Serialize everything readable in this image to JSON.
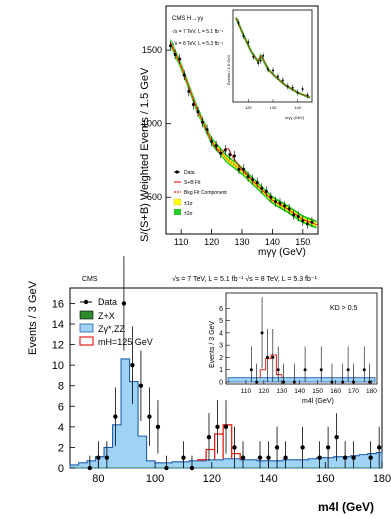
{
  "chart_data": [
    {
      "type": "line",
      "experiment": "CMS H→γγ",
      "lumi_lines": [
        "√s = 7 TeV, L = 5.1 fb⁻¹",
        "√s = 8 TeV, L = 5.3 fb⁻¹"
      ],
      "xlabel": "mγγ (GeV)",
      "ylabel": "S/(S+B) Weighted Events / 1.5 GeV",
      "xlim": [
        105,
        155
      ],
      "ylim": [
        250,
        1800
      ],
      "xticks": [
        110,
        120,
        130,
        140,
        150
      ],
      "yticks": [
        500,
        1000,
        1500
      ],
      "legend": [
        "Data",
        "S+B Fit",
        "Bkg Fit Component",
        "±1σ",
        "±2σ"
      ],
      "colors": {
        "data": "#000000",
        "sb_fit": "#e2231a",
        "bkg_fit": "#333333",
        "band1": "#ffff00",
        "band2": "#22cc22"
      },
      "series": [
        {
          "name": "Data",
          "x": [
            106.5,
            108,
            109.5,
            111,
            112.5,
            114,
            115.5,
            117,
            118.5,
            120,
            121.5,
            123,
            124.5,
            126,
            127.5,
            129,
            130.5,
            132,
            133.5,
            135,
            136.5,
            138,
            139.5,
            141,
            142.5,
            144,
            145.5,
            147,
            148.5,
            150,
            151.5,
            153
          ],
          "y": [
            1530,
            1470,
            1440,
            1330,
            1220,
            1130,
            1080,
            1010,
            960,
            880,
            850,
            800,
            820,
            790,
            780,
            690,
            690,
            640,
            620,
            600,
            560,
            540,
            500,
            470,
            460,
            440,
            420,
            380,
            370,
            340,
            320,
            330
          ]
        },
        {
          "name": "S+B Fit",
          "x": [
            106.5,
            110,
            115,
            120,
            123,
            124.5,
            125.5,
            127,
            130,
            135,
            140,
            145,
            150,
            155
          ],
          "y": [
            1550,
            1390,
            1110,
            880,
            790,
            830,
            830,
            770,
            690,
            580,
            480,
            420,
            350,
            310
          ]
        },
        {
          "name": "Bkg Fit Component",
          "x": [
            106.5,
            110,
            115,
            120,
            125,
            130,
            135,
            140,
            145,
            150,
            155
          ],
          "y": [
            1550,
            1390,
            1110,
            880,
            760,
            680,
            580,
            480,
            420,
            350,
            310
          ]
        }
      ],
      "inset": {
        "xlim": [
          115,
          145
        ],
        "ylim": [
          130,
          200
        ],
        "xticks": [
          120,
          130,
          140
        ],
        "ylabel": "Events / 1.5 GeV",
        "xlabel": "mγγ (GeV)",
        "series": [
          {
            "name": "Data",
            "x": [
              116,
              118,
              120,
              122,
              124,
              125,
              126,
              128,
              130,
              132,
              134,
              136,
              138,
              140,
              142,
              144
            ],
            "y": [
              193,
              182,
              177,
              165,
              160,
              162,
              166,
              155,
              154,
              149,
              146,
              141,
              140,
              136,
              139,
              134
            ]
          },
          {
            "name": "S+B Fit",
            "x": [
              115,
              118,
              121,
              124,
              125,
              126,
              128,
              131,
              135,
              140,
              145
            ],
            "y": [
              197,
              183,
              170,
              161,
              166,
              163,
              155,
              149,
              142,
              136,
              132
            ]
          }
        ]
      }
    },
    {
      "type": "bar",
      "experiment": "CMS",
      "lumi": "√s = 7 TeV, L = 5.1 fb⁻¹  √s = 8 TeV, L = 5.3 fb⁻¹",
      "xlabel": "m4l (GeV)",
      "ylabel": "Events / 3 GeV",
      "xlim": [
        70,
        180
      ],
      "ylim": [
        0,
        17.5
      ],
      "xticks": [
        80,
        100,
        120,
        140,
        160,
        180
      ],
      "yticks": [
        0,
        2,
        4,
        6,
        8,
        10,
        12,
        14,
        16
      ],
      "legend": [
        "Data",
        "Z+X",
        "Zγ*,ZZ",
        "mH=125 GeV"
      ],
      "colors": {
        "zx": "#2e8b2e",
        "zz": "#9fd3f5",
        "zz_edge": "#1f5fb0",
        "signal": "#e2231a"
      },
      "bin_edges": [
        70,
        73,
        76,
        79,
        82,
        85,
        88,
        91,
        94,
        97,
        100,
        103,
        106,
        109,
        112,
        115,
        118,
        121,
        124,
        127,
        130,
        133,
        136,
        139,
        142,
        145,
        148,
        151,
        154,
        157,
        160,
        163,
        166,
        169,
        172,
        175,
        178,
        181
      ],
      "series": [
        {
          "name": "Z+X",
          "values": [
            0.05,
            0.05,
            0.05,
            0.05,
            0.05,
            0.05,
            0.05,
            0.05,
            0.05,
            0.05,
            0.05,
            0.05,
            0.05,
            0.05,
            0.05,
            0.05,
            0.05,
            0.05,
            0.05,
            0.05,
            0.05,
            0.05,
            0.05,
            0.05,
            0.05,
            0.05,
            0.05,
            0.05,
            0.05,
            0.05,
            0.05,
            0.05,
            0.05,
            0.05,
            0.05,
            0.05,
            0.05
          ]
        },
        {
          "name": "Zγ*,ZZ",
          "values": [
            0.3,
            0.5,
            0.7,
            1.1,
            2.0,
            4.2,
            10.6,
            8.4,
            3.1,
            0.7,
            0.5,
            0.5,
            0.6,
            0.6,
            0.7,
            0.7,
            0.8,
            0.8,
            0.9,
            0.9,
            0.8,
            0.8,
            0.7,
            0.7,
            0.7,
            0.8,
            0.8,
            0.8,
            0.9,
            1.0,
            1.0,
            1.1,
            1.1,
            1.2,
            1.3,
            1.4,
            1.5
          ]
        },
        {
          "name": "mH=125 GeV",
          "values": [
            0.3,
            0.5,
            0.7,
            1.1,
            2.0,
            4.2,
            10.6,
            8.4,
            3.1,
            0.7,
            0.5,
            0.5,
            0.6,
            0.6,
            0.7,
            0.8,
            1.8,
            3.3,
            4.2,
            1.4,
            0.8,
            0.8,
            0.7,
            0.7,
            0.7,
            0.8,
            0.8,
            0.8,
            0.9,
            1.0,
            1.0,
            1.1,
            1.1,
            1.2,
            1.3,
            1.4,
            1.5
          ]
        }
      ],
      "data_points": {
        "x": [
          77,
          80,
          83,
          86,
          89,
          92,
          95,
          98,
          101,
          104,
          110,
          113,
          119,
          122,
          125,
          128,
          131,
          137,
          140,
          143,
          146,
          152,
          158,
          161,
          164,
          167,
          170,
          176,
          179
        ],
        "y": [
          0,
          1,
          1,
          5,
          16,
          10,
          8,
          5,
          4,
          0,
          1,
          0,
          3,
          4,
          4,
          2,
          1,
          1,
          1,
          2,
          1,
          2,
          1,
          2,
          3,
          1,
          1,
          1,
          2
        ]
      },
      "inset": {
        "label": "KD > 0.5",
        "xlim": [
          100,
          182
        ],
        "ylim": [
          0,
          7
        ],
        "xticks": [
          110,
          120,
          130,
          140,
          150,
          160,
          170,
          180
        ],
        "yticks": [
          0,
          1,
          2,
          3,
          4,
          5,
          6
        ],
        "ylabel": "Events / 3 GeV",
        "xlabel": "m4l (GeV)",
        "data_points": {
          "x": [
            113,
            116,
            119,
            122,
            125,
            128,
            131,
            137,
            143,
            152,
            158,
            164,
            167,
            170,
            176,
            179
          ],
          "y": [
            1,
            0,
            4,
            2,
            2,
            1,
            0,
            0,
            1,
            1,
            0,
            0,
            1,
            0,
            1,
            0
          ]
        }
      }
    }
  ]
}
